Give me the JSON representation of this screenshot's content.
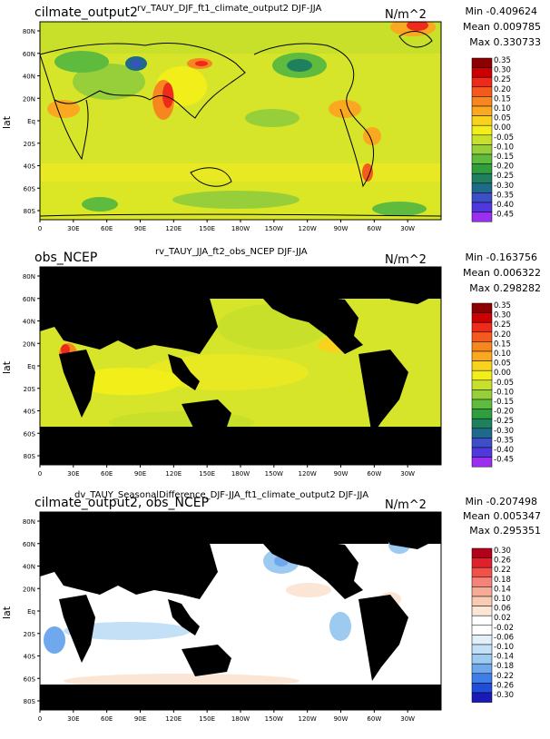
{
  "panels": [
    {
      "case_label": "cilmate_output2",
      "title": "rv_TAUY_DJF_ft1_climate_output2  DJF-JJA",
      "units": "N/m^2",
      "stats": {
        "min": "Min -0.409624",
        "mean": "Mean 0.009785",
        "max": "Max 0.330733"
      },
      "ylabel": "lat"
    },
    {
      "case_label": "obs_NCEP",
      "title": "rv_TAUY_JJA_ft2_obs_NCEP  DJF-JJA",
      "units": "N/m^2",
      "stats": {
        "min": "Min -0.163756",
        "mean": "Mean 0.006322",
        "max": "Max 0.298282"
      },
      "ylabel": "lat"
    },
    {
      "case_label": "cilmate_output2, obs_NCEP",
      "title": "dv_TAUY_SeasonalDifference_DJF-JJA_ft1_climate_output2  DJF-JJA",
      "units": "N/m^2",
      "stats": {
        "min": "Min -0.207498",
        "mean": "Mean 0.005347",
        "max": "Max 0.295351"
      },
      "ylabel": "lat"
    }
  ],
  "chart_data": [
    {
      "type": "heatmap",
      "title": "rv_TAUY_DJF_ft1_climate_output2  DJF-JJA",
      "ylabel": "lat",
      "x_ticks": [
        "0",
        "30E",
        "60E",
        "90E",
        "120E",
        "150E",
        "180W",
        "150W",
        "120W",
        "90W",
        "60W",
        "30W"
      ],
      "y_ticks": [
        "80N",
        "60N",
        "40N",
        "20N",
        "Eq",
        "20S",
        "40S",
        "60S",
        "80S"
      ],
      "colorbar_levels": [
        "0.35",
        "0.30",
        "0.25",
        "0.20",
        "0.15",
        "0.10",
        "0.05",
        "0.00",
        "-0.05",
        "-0.10",
        "-0.15",
        "-0.20",
        "-0.25",
        "-0.30",
        "-0.35",
        "-0.40",
        "-0.45"
      ],
      "colorbar_colors": [
        "#8b0000",
        "#cc0000",
        "#ee2a1a",
        "#f45a1e",
        "#f7861f",
        "#f9a81f",
        "#f9d21e",
        "#f2ee1a",
        "#c8e02a",
        "#97cf3a",
        "#5fbb3e",
        "#2f9f3c",
        "#1f8060",
        "#1f6a8a",
        "#3c4fc6",
        "#5038e0",
        "#9a2ff0"
      ],
      "missing_color": null
    },
    {
      "type": "heatmap",
      "title": "rv_TAUY_JJA_ft2_obs_NCEP  DJF-JJA",
      "ylabel": "lat",
      "x_ticks": [
        "0",
        "30E",
        "60E",
        "90E",
        "120E",
        "150E",
        "180W",
        "150W",
        "120W",
        "90W",
        "60W",
        "30W"
      ],
      "y_ticks": [
        "80N",
        "60N",
        "40N",
        "20N",
        "Eq",
        "20S",
        "40S",
        "60S",
        "80S"
      ],
      "colorbar_levels": [
        "0.35",
        "0.30",
        "0.25",
        "0.20",
        "0.15",
        "0.10",
        "0.05",
        "0.00",
        "-0.05",
        "-0.10",
        "-0.15",
        "-0.20",
        "-0.25",
        "-0.30",
        "-0.35",
        "-0.40",
        "-0.45"
      ],
      "colorbar_colors": [
        "#8b0000",
        "#cc0000",
        "#ee2a1a",
        "#f45a1e",
        "#f7861f",
        "#f9a81f",
        "#f9d21e",
        "#f2ee1a",
        "#c8e02a",
        "#97cf3a",
        "#5fbb3e",
        "#2f9f3c",
        "#1f8060",
        "#1f6a8a",
        "#3c4fc6",
        "#5038e0",
        "#9a2ff0"
      ],
      "missing_color": "#000000"
    },
    {
      "type": "heatmap",
      "title": "dv_TAUY_SeasonalDifference_DJF-JJA_ft1_climate_output2  DJF-JJA",
      "ylabel": "lat",
      "x_ticks": [
        "0",
        "30E",
        "60E",
        "90E",
        "120E",
        "150E",
        "180W",
        "150W",
        "120W",
        "90W",
        "60W",
        "30W"
      ],
      "y_ticks": [
        "80N",
        "60N",
        "40N",
        "20N",
        "Eq",
        "20S",
        "40S",
        "60S",
        "80S"
      ],
      "colorbar_levels": [
        "0.30",
        "0.26",
        "0.22",
        "0.18",
        "0.14",
        "0.10",
        "0.06",
        "0.02",
        "-0.02",
        "-0.06",
        "-0.10",
        "-0.14",
        "-0.18",
        "-0.22",
        "-0.26",
        "-0.30"
      ],
      "colorbar_colors": [
        "#b3001b",
        "#e0202a",
        "#f0524a",
        "#f4837a",
        "#f6aa98",
        "#f8ccb4",
        "#fbe6d6",
        "#ffffff",
        "#ffffff",
        "#e2f0fa",
        "#c4e0f6",
        "#9ccaf0",
        "#6fa8ec",
        "#3f7ee6",
        "#1f4fd8",
        "#1a1ab8"
      ],
      "missing_color": "#000000"
    }
  ]
}
